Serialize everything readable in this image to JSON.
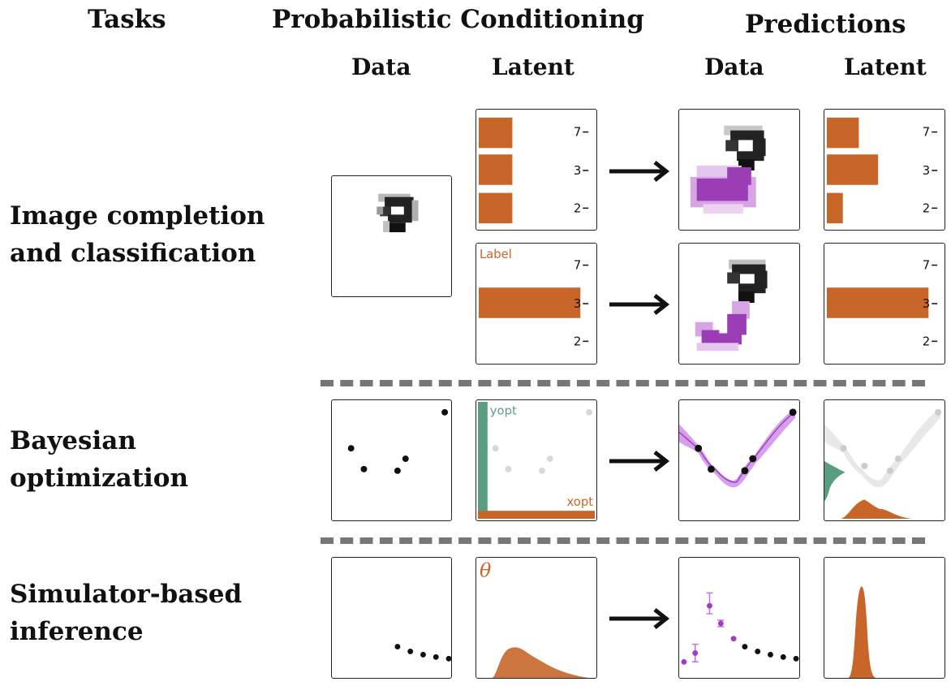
{
  "headers": {
    "tasks": "Tasks",
    "prob_cond": "Probabilistic Conditioning",
    "predictions": "Predictions",
    "cond_data": "Data",
    "cond_latent": "Latent",
    "pred_data": "Data",
    "pred_latent": "Latent"
  },
  "tasks": {
    "image": [
      "Image completion",
      "and classification"
    ],
    "bayes": [
      "Bayesian",
      "optimization"
    ],
    "sbi": [
      "Simulator-based",
      "inference"
    ]
  },
  "digit_ticks": [
    "7",
    "3",
    "2"
  ],
  "annotations": {
    "label": "Label",
    "yopt": "yopt",
    "xopt": "xopt",
    "theta": "θ"
  },
  "colors": {
    "orange": "#c8662a",
    "green": "#5a9e82",
    "purple": "#a13ec0",
    "gray": "#d8d8d8"
  }
}
